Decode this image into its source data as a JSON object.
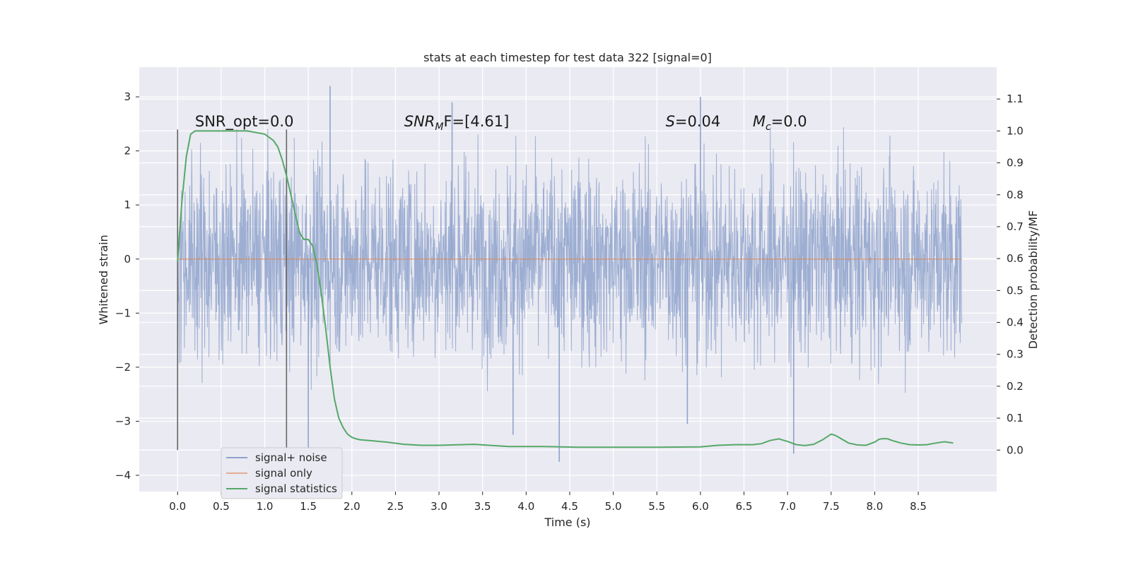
{
  "chart_data": {
    "type": "line",
    "title": "stats at each timestep for test data 322 [signal=0]",
    "xlabel": "Time (s)",
    "ylabel": "Whitened strain",
    "y2label": "Detection probability/MF",
    "xlim": [
      -0.44,
      9.4
    ],
    "ylim": [
      -4.3,
      3.55
    ],
    "y2lim": [
      -0.13,
      1.2
    ],
    "xticks": [
      0.0,
      0.5,
      1.0,
      1.5,
      2.0,
      2.5,
      3.0,
      3.5,
      4.0,
      4.5,
      5.0,
      5.5,
      6.0,
      6.5,
      7.0,
      7.5,
      8.0,
      8.5
    ],
    "xtick_labels": [
      "0.0",
      "0.5",
      "1.0",
      "1.5",
      "2.0",
      "2.5",
      "3.0",
      "3.5",
      "4.0",
      "4.5",
      "5.0",
      "5.5",
      "6.0",
      "6.5",
      "7.0",
      "7.5",
      "8.0",
      "8.5"
    ],
    "yticks": [
      3,
      2,
      1,
      0,
      -1,
      -2,
      -3,
      -4
    ],
    "ytick_labels": [
      "3",
      "2",
      "1",
      "0",
      "−1",
      "−2",
      "−3",
      "−4"
    ],
    "y2ticks": [
      1.1,
      1.0,
      0.9,
      0.8,
      0.7,
      0.6,
      0.5,
      0.4,
      0.3,
      0.2,
      0.1,
      0.0
    ],
    "y2tick_labels": [
      "1.1",
      "1.0",
      "0.9",
      "0.8",
      "0.7",
      "0.6",
      "0.5",
      "0.4",
      "0.3",
      "0.2",
      "0.1",
      "0.0"
    ],
    "grid": true,
    "legend_position": "lower-left",
    "series": [
      {
        "name": "signal+ noise",
        "color": "#8fa3cc",
        "kind": "noise",
        "x_range": [
          0.0,
          9.0
        ],
        "amplitude_std": 0.9,
        "extremes": [
          {
            "x": 1.5,
            "y": -3.6
          },
          {
            "x": 1.75,
            "y": 3.2
          },
          {
            "x": 4.38,
            "y": -3.75
          },
          {
            "x": 7.07,
            "y": -3.6
          },
          {
            "x": 3.85,
            "y": -3.25
          },
          {
            "x": 5.85,
            "y": -3.05
          },
          {
            "x": 6.0,
            "y": 3.0
          },
          {
            "x": 3.15,
            "y": 2.9
          }
        ]
      },
      {
        "name": "signal only",
        "color": "#dd8452",
        "kind": "flat",
        "x": [
          0.0,
          9.0
        ],
        "y": [
          0.0,
          0.0
        ]
      },
      {
        "name": "signal statistics",
        "color": "#55a868",
        "kind": "line",
        "axis": "right",
        "x": [
          0.0,
          0.05,
          0.1,
          0.15,
          0.2,
          0.3,
          0.5,
          0.8,
          1.0,
          1.05,
          1.1,
          1.15,
          1.2,
          1.25,
          1.3,
          1.35,
          1.4,
          1.45,
          1.5,
          1.55,
          1.6,
          1.65,
          1.7,
          1.75,
          1.8,
          1.85,
          1.9,
          1.95,
          2.0,
          2.05,
          2.1,
          2.2,
          2.4,
          2.6,
          2.8,
          3.0,
          3.4,
          3.8,
          4.2,
          4.6,
          5.0,
          5.5,
          6.0,
          6.2,
          6.4,
          6.6,
          6.7,
          6.8,
          6.9,
          7.0,
          7.1,
          7.2,
          7.3,
          7.4,
          7.5,
          7.55,
          7.6,
          7.7,
          7.8,
          7.9,
          8.0,
          8.05,
          8.1,
          8.15,
          8.2,
          8.3,
          8.4,
          8.5,
          8.6,
          8.7,
          8.8,
          8.9
        ],
        "y": [
          0.59,
          0.78,
          0.92,
          0.99,
          1.0,
          1.0,
          1.0,
          1.0,
          0.99,
          0.98,
          0.97,
          0.95,
          0.91,
          0.86,
          0.8,
          0.74,
          0.68,
          0.66,
          0.66,
          0.64,
          0.58,
          0.49,
          0.38,
          0.26,
          0.16,
          0.1,
          0.07,
          0.05,
          0.04,
          0.035,
          0.032,
          0.03,
          0.025,
          0.018,
          0.015,
          0.015,
          0.018,
          0.011,
          0.011,
          0.009,
          0.009,
          0.009,
          0.01,
          0.015,
          0.017,
          0.017,
          0.02,
          0.03,
          0.035,
          0.027,
          0.017,
          0.014,
          0.018,
          0.032,
          0.05,
          0.046,
          0.038,
          0.022,
          0.016,
          0.015,
          0.025,
          0.034,
          0.036,
          0.035,
          0.03,
          0.022,
          0.017,
          0.016,
          0.017,
          0.022,
          0.026,
          0.022
        ]
      }
    ],
    "vlines": [
      0.0,
      1.25
    ],
    "annotations": [
      {
        "x": 0.2,
        "y": 2.45,
        "text": "SNR_opt=0.0",
        "style": "plain"
      },
      {
        "x": 2.6,
        "y": 2.45,
        "text": "SNR_MF=[4.61]",
        "style": "math",
        "base": "SNR",
        "sub": "M",
        "rest": "F=[4.61]"
      },
      {
        "x": 5.6,
        "y": 2.45,
        "text": "S=0.04",
        "style": "math",
        "base": "S",
        "sub": "",
        "rest": "=0.04"
      },
      {
        "x": 6.6,
        "y": 2.45,
        "text": "M_c=0.0",
        "style": "math",
        "base": "M",
        "sub": "c",
        "rest": "=0.0"
      }
    ]
  }
}
